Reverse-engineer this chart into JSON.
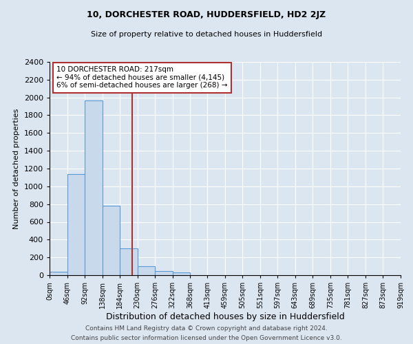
{
  "title1": "10, DORCHESTER ROAD, HUDDERSFIELD, HD2 2JZ",
  "title2": "Size of property relative to detached houses in Huddersfield",
  "xlabel": "Distribution of detached houses by size in Huddersfield",
  "ylabel": "Number of detached properties",
  "bin_edges": [
    0,
    46,
    92,
    138,
    184,
    230,
    276,
    322,
    368,
    413,
    459,
    505,
    551,
    597,
    643,
    689,
    735,
    781,
    827,
    873,
    919
  ],
  "bin_counts": [
    40,
    1140,
    1970,
    780,
    300,
    100,
    50,
    30,
    0,
    0,
    0,
    0,
    0,
    0,
    0,
    0,
    0,
    0,
    0,
    0
  ],
  "bar_color": "#c9d9ec",
  "bar_edge_color": "#5b9bd5",
  "property_size": 217,
  "vline_color": "#b03030",
  "annotation_line1": "10 DORCHESTER ROAD: 217sqm",
  "annotation_line2": "← 94% of detached houses are smaller (4,145)",
  "annotation_line3": "6% of semi-detached houses are larger (268) →",
  "annotation_box_color": "#ffffff",
  "annotation_box_edge": "#b03030",
  "ylim": [
    0,
    2400
  ],
  "yticks": [
    0,
    200,
    400,
    600,
    800,
    1000,
    1200,
    1400,
    1600,
    1800,
    2000,
    2200,
    2400
  ],
  "tick_labels": [
    "0sqm",
    "46sqm",
    "92sqm",
    "138sqm",
    "184sqm",
    "230sqm",
    "276sqm",
    "322sqm",
    "368sqm",
    "413sqm",
    "459sqm",
    "505sqm",
    "551sqm",
    "597sqm",
    "643sqm",
    "689sqm",
    "735sqm",
    "781sqm",
    "827sqm",
    "873sqm",
    "919sqm"
  ],
  "bg_color": "#dce6f1",
  "plot_bg_color": "#dce6f1",
  "footer1": "Contains HM Land Registry data © Crown copyright and database right 2024.",
  "footer2": "Contains public sector information licensed under the Open Government Licence v3.0.",
  "title1_fontsize": 9,
  "title2_fontsize": 8,
  "xlabel_fontsize": 9,
  "ylabel_fontsize": 8,
  "annot_fontsize": 7.5,
  "footer_fontsize": 6.5
}
